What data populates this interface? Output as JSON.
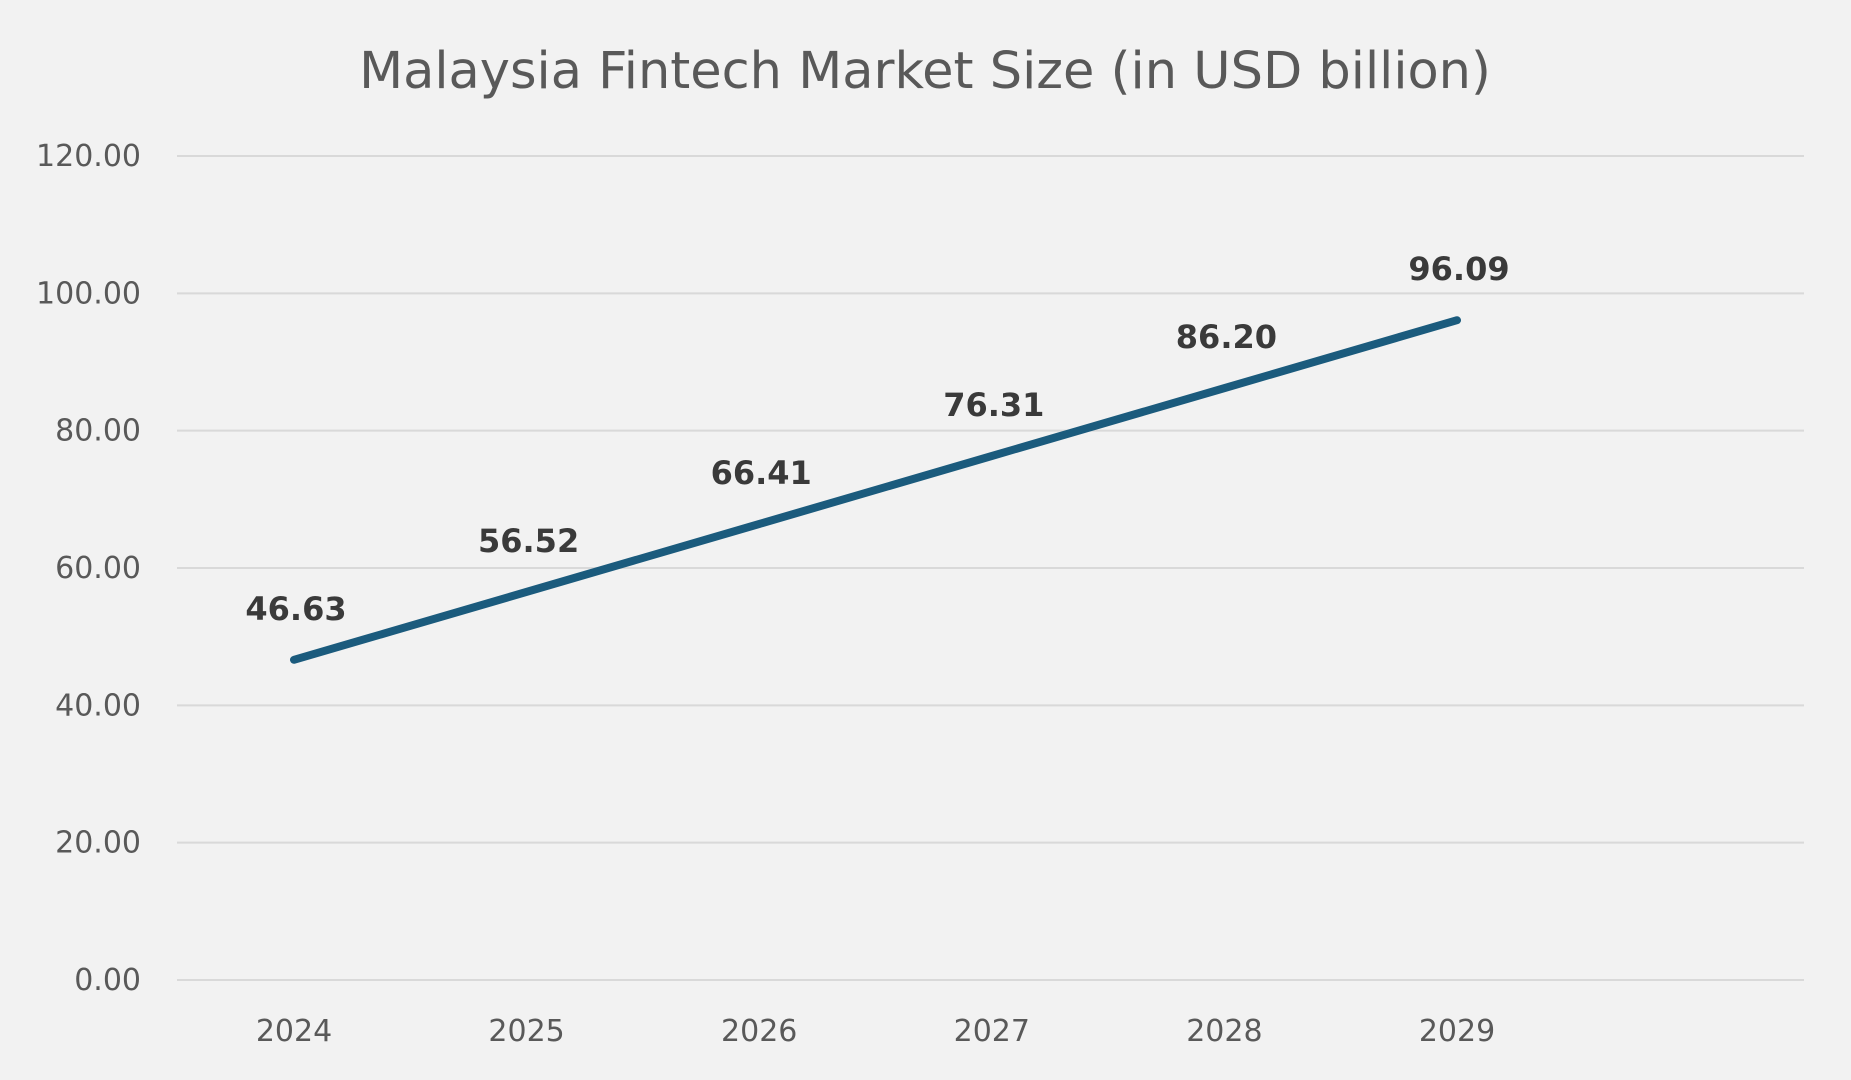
{
  "chart_data": {
    "type": "line",
    "title": "Malaysia Fintech Market Size (in USD billion)",
    "xlabel": "",
    "ylabel": "",
    "categories": [
      "2024",
      "2025",
      "2026",
      "2027",
      "2028",
      "2029"
    ],
    "series": [
      {
        "name": "Market Size",
        "values": [
          46.63,
          56.52,
          66.41,
          76.31,
          86.2,
          96.09
        ],
        "labels": [
          "46.63",
          "56.52",
          "66.41",
          "76.31",
          "86.20",
          "96.09"
        ],
        "color": "#1b5b7d"
      }
    ],
    "ylim": [
      0,
      120
    ],
    "yticks": [
      0,
      20,
      40,
      60,
      80,
      100,
      120
    ],
    "ytick_labels": [
      "0.00",
      "20.00",
      "40.00",
      "60.00",
      "80.00",
      "100.00",
      "120.00"
    ],
    "grid": true,
    "legend": "none"
  },
  "colors": {
    "background": "#f2f2f2",
    "gridline": "#d9d9d9",
    "axis_text": "#595959",
    "data_label_text": "#3a3a3a"
  }
}
